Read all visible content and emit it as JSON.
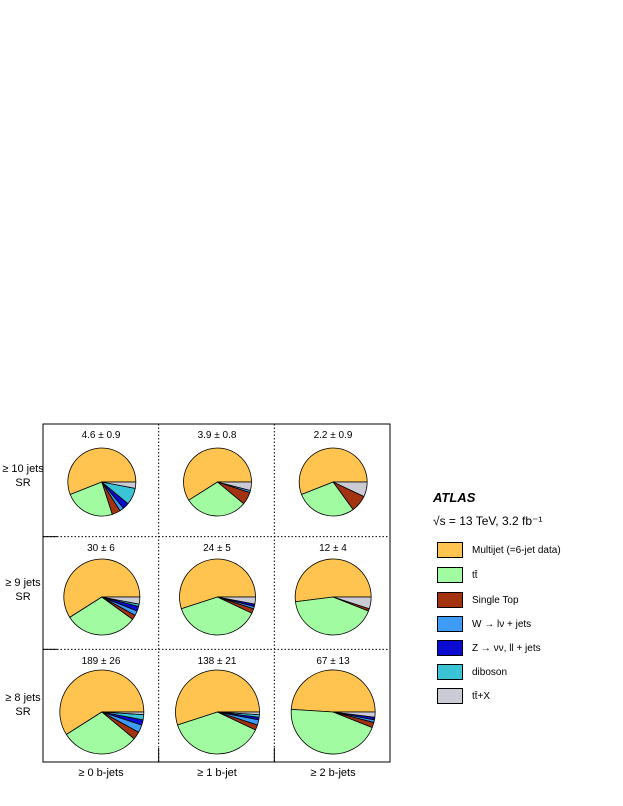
{
  "experiment": "ATLAS",
  "energy_label": "√s = 13 TeV, 3.2 fb⁻¹",
  "chart_data": {
    "type": "pie",
    "layout": "grid-3x3",
    "rows": [
      {
        "line1": "≥ 10 jets",
        "line2": "SR"
      },
      {
        "line1": "≥ 9 jets",
        "line2": "SR"
      },
      {
        "line1": "≥ 8 jets",
        "line2": "SR"
      }
    ],
    "columns": [
      "≥ 0 b-jets",
      "≥ 1 b-jet",
      "≥ 2 b-jets"
    ],
    "legend_placement": "right",
    "legend": [
      {
        "name": "Multijet (=6-jet data)",
        "color": "#fec44f"
      },
      {
        "name": "tt̄",
        "color": "#a1fba1"
      },
      {
        "name": "Single Top",
        "color": "#a33310"
      },
      {
        "name": "W → lν + jets",
        "color": "#3c9cf7"
      },
      {
        "name": "Z → νν, ll + jets",
        "color": "#0a0ad0"
      },
      {
        "name": "diboson",
        "color": "#3bc3d6"
      },
      {
        "name": "tt̄+X",
        "color": "#cbcbd6"
      }
    ],
    "cells": [
      {
        "row": 0,
        "col": 0,
        "total": "4.6 ± 0.9",
        "fractions": [
          0.56,
          0.24,
          0.04,
          0.02,
          0.03,
          0.08,
          0.03
        ]
      },
      {
        "row": 0,
        "col": 1,
        "total": "3.9 ± 0.8",
        "fractions": [
          0.59,
          0.3,
          0.06,
          0.01,
          0.0,
          0.0,
          0.04
        ]
      },
      {
        "row": 0,
        "col": 2,
        "total": "2.2 ± 0.9",
        "fractions": [
          0.56,
          0.29,
          0.08,
          0.0,
          0.0,
          0.0,
          0.07
        ]
      },
      {
        "row": 1,
        "col": 0,
        "total": "30 ± 6",
        "fractions": [
          0.59,
          0.31,
          0.02,
          0.02,
          0.02,
          0.01,
          0.03
        ]
      },
      {
        "row": 1,
        "col": 1,
        "total": "24 ± 5",
        "fractions": [
          0.55,
          0.38,
          0.02,
          0.01,
          0.01,
          0.0,
          0.03
        ]
      },
      {
        "row": 1,
        "col": 2,
        "total": "12 ± 4",
        "fractions": [
          0.52,
          0.42,
          0.01,
          0.0,
          0.0,
          0.0,
          0.05
        ]
      },
      {
        "row": 2,
        "col": 0,
        "total": "189 ± 26",
        "fractions": [
          0.59,
          0.3,
          0.03,
          0.03,
          0.02,
          0.02,
          0.01
        ]
      },
      {
        "row": 2,
        "col": 1,
        "total": "138 ± 21",
        "fractions": [
          0.55,
          0.38,
          0.02,
          0.02,
          0.01,
          0.01,
          0.01
        ]
      },
      {
        "row": 2,
        "col": 2,
        "total": "67 ± 13",
        "fractions": [
          0.49,
          0.45,
          0.02,
          0.01,
          0.01,
          0.0,
          0.02
        ]
      }
    ]
  }
}
